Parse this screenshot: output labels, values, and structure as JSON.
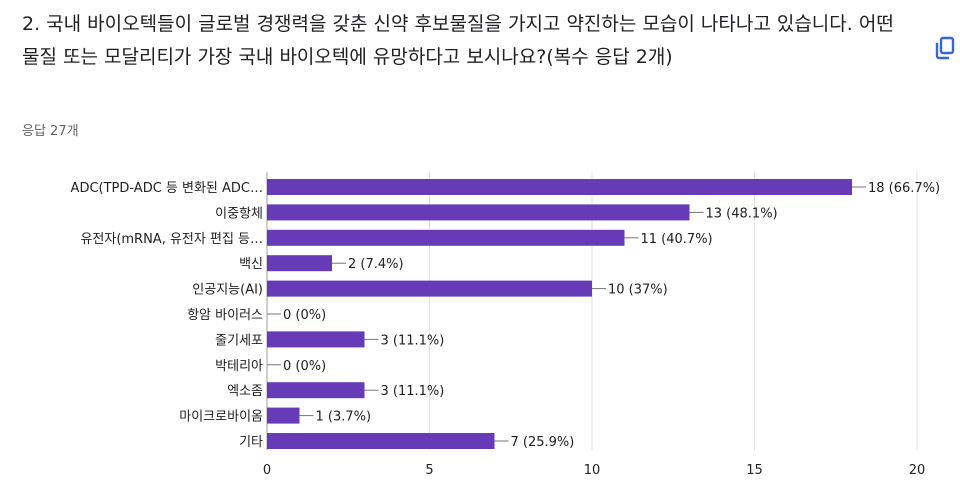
{
  "question": {
    "text": "2. 국내 바이오텍들이 글로벌 경쟁력을 갖춘 신약 후보물질을 가지고 약진하는 모습이 나타나고 있습니다. 어떤 물질 또는 모달리티가 가장 국내 바이오텍에 유망하다고 보시나요?(복수 응답 2개)"
  },
  "response_count": "응답 27개",
  "copy_icon": "copy-icon",
  "colors": {
    "bar": "#673ab7",
    "grid": "#e0e0e0",
    "text": "#202124",
    "muted": "#5f6368",
    "accent": "#3367d6"
  },
  "chart_data": {
    "type": "bar",
    "orientation": "horizontal",
    "categories": [
      "ADC(TPD-ADC 등 변화된 ADC…",
      "이중항체",
      "유전자(mRNA, 유전자 편집 등…",
      "백신",
      "인공지능(AI)",
      "항암 바이러스",
      "줄기세포",
      "박테리아",
      "엑소좀",
      "마이크로바이옴",
      "기타"
    ],
    "values": [
      18,
      13,
      11,
      2,
      10,
      0,
      3,
      0,
      3,
      1,
      7
    ],
    "data_labels": [
      "18 (66.7%)",
      "13 (48.1%)",
      "11 (40.7%)",
      "2 (7.4%)",
      "10 (37%)",
      "0 (0%)",
      "3 (11.1%)",
      "0 (0%)",
      "3 (11.1%)",
      "1 (3.7%)",
      "7 (25.9%)"
    ],
    "xlim": [
      0,
      20
    ],
    "xticks": [
      0,
      5,
      10,
      15,
      20
    ],
    "grid": true
  }
}
